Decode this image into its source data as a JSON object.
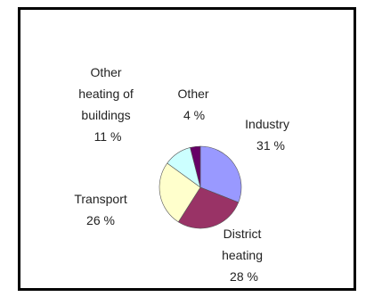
{
  "chart_data": {
    "type": "pie",
    "title": "",
    "slices": [
      {
        "label_lines": [
          "Industry"
        ],
        "value_label": "31 %",
        "value": 31,
        "color": "#9999ff"
      },
      {
        "label_lines": [
          "District",
          "heating"
        ],
        "value_label": "28 %",
        "value": 28,
        "color": "#993366"
      },
      {
        "label_lines": [
          "Transport"
        ],
        "value_label": "26 %",
        "value": 26,
        "color": "#ffffcc"
      },
      {
        "label_lines": [
          "Other",
          "heating of",
          "buildings"
        ],
        "value_label": "11 %",
        "value": 11,
        "color": "#ccffff"
      },
      {
        "label_lines": [
          "Other"
        ],
        "value_label": "4 %",
        "value": 4,
        "color": "#660066"
      }
    ],
    "start_angle_deg": 0,
    "direction": "clockwise",
    "legend": "none"
  }
}
